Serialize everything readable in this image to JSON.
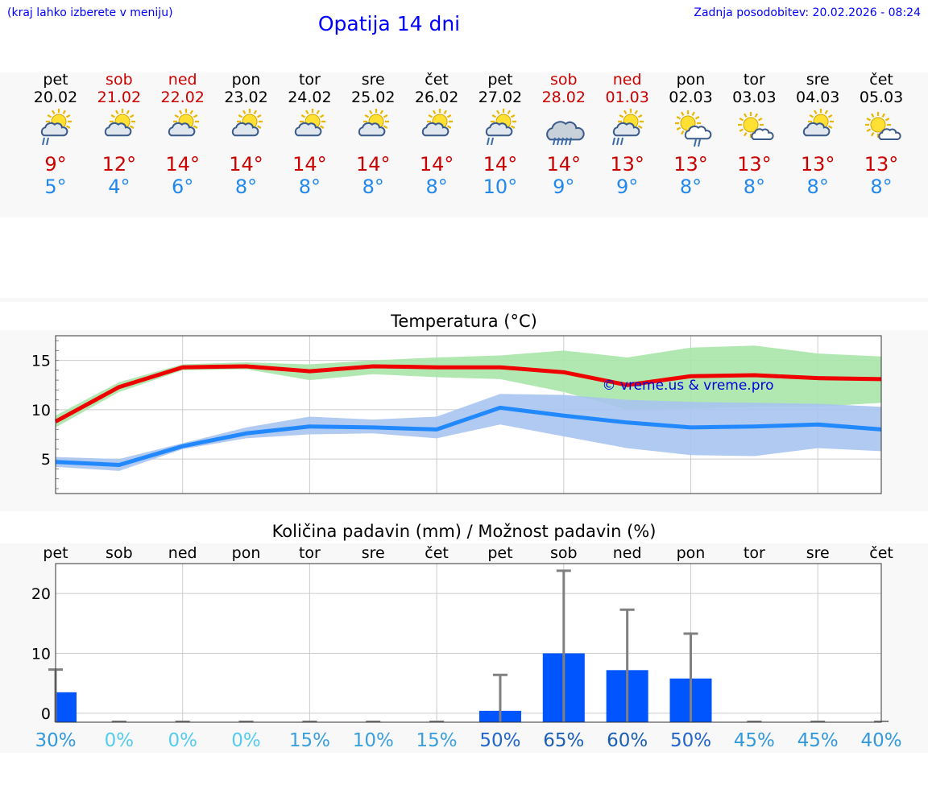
{
  "header": {
    "location_hint": "(kraj lahko izberete v meniju)",
    "title": "Opatija 14 dni",
    "updated": "Zadnja posodobitev: 20.02.2026 - 08:24"
  },
  "days": [
    {
      "name": "pet",
      "date": "20.02",
      "weekend": false,
      "icon": "sun-cloud-rain-icon",
      "max": "9°",
      "min": "5°"
    },
    {
      "name": "sob",
      "date": "21.02",
      "weekend": true,
      "icon": "sun-cloud-icon",
      "max": "12°",
      "min": "4°"
    },
    {
      "name": "ned",
      "date": "22.02",
      "weekend": true,
      "icon": "sun-cloud-icon",
      "max": "14°",
      "min": "6°"
    },
    {
      "name": "pon",
      "date": "23.02",
      "weekend": false,
      "icon": "sun-cloud-icon",
      "max": "14°",
      "min": "8°"
    },
    {
      "name": "tor",
      "date": "24.02",
      "weekend": false,
      "icon": "sun-cloud-icon",
      "max": "14°",
      "min": "8°"
    },
    {
      "name": "sre",
      "date": "25.02",
      "weekend": false,
      "icon": "sun-cloud-icon",
      "max": "14°",
      "min": "8°"
    },
    {
      "name": "čet",
      "date": "26.02",
      "weekend": false,
      "icon": "sun-cloud-icon",
      "max": "14°",
      "min": "8°"
    },
    {
      "name": "pet",
      "date": "27.02",
      "weekend": false,
      "icon": "sun-cloud-rain-icon",
      "max": "14°",
      "min": "10°"
    },
    {
      "name": "sob",
      "date": "28.02",
      "weekend": true,
      "icon": "cloud-rain-icon",
      "max": "14°",
      "min": "9°"
    },
    {
      "name": "ned",
      "date": "01.03",
      "weekend": true,
      "icon": "sun-cloud-heavy-rain-icon",
      "max": "13°",
      "min": "9°"
    },
    {
      "name": "pon",
      "date": "02.03",
      "weekend": false,
      "icon": "sun-cloud-light-rain-icon",
      "max": "13°",
      "min": "8°"
    },
    {
      "name": "tor",
      "date": "03.03",
      "weekend": false,
      "icon": "sun-small-cloud-icon",
      "max": "13°",
      "min": "8°"
    },
    {
      "name": "sre",
      "date": "04.03",
      "weekend": false,
      "icon": "sun-cloud-icon",
      "max": "13°",
      "min": "8°"
    },
    {
      "name": "čet",
      "date": "05.03",
      "weekend": false,
      "icon": "sun-small-cloud-icon",
      "max": "13°",
      "min": "8°"
    }
  ],
  "colors": {
    "max": "#ee0000",
    "min": "#2288ff",
    "max_band": "#a8e6a8",
    "min_band": "#a8c4f0",
    "bar": "#0055ff",
    "whisker": "#808080",
    "weekend": "#cc0000"
  },
  "chart_data": [
    {
      "type": "line",
      "title": "Temperatura (°C)",
      "watermark": "© vreme.us & vreme.pro",
      "categories": [
        "pet",
        "sob",
        "ned",
        "pon",
        "tor",
        "sre",
        "čet",
        "pet",
        "sob",
        "ned",
        "pon",
        "tor",
        "sre",
        "čet"
      ],
      "ylim": [
        1.5,
        17.5
      ],
      "yticks": [
        5,
        10,
        15
      ],
      "series": [
        {
          "name": "max",
          "values": [
            8.8,
            12.3,
            14.3,
            14.4,
            13.9,
            14.4,
            14.3,
            14.3,
            13.8,
            12.5,
            13.4,
            13.5,
            13.2,
            13.1
          ],
          "band_low": [
            8.2,
            11.8,
            14.0,
            14.1,
            13.0,
            13.6,
            13.3,
            13.1,
            11.8,
            10.0,
            10.1,
            10.3,
            10.3,
            10.7
          ],
          "band_high": [
            9.4,
            12.8,
            14.6,
            14.8,
            14.6,
            15.0,
            15.3,
            15.5,
            16.0,
            15.3,
            16.3,
            16.5,
            15.7,
            15.4
          ]
        },
        {
          "name": "min",
          "values": [
            4.7,
            4.4,
            6.3,
            7.6,
            8.3,
            8.2,
            8.0,
            10.2,
            9.4,
            8.7,
            8.2,
            8.3,
            8.5,
            8.0
          ],
          "band_low": [
            4.2,
            3.8,
            6.0,
            7.1,
            7.5,
            7.6,
            7.1,
            8.5,
            7.3,
            6.1,
            5.4,
            5.3,
            6.1,
            5.8
          ],
          "band_high": [
            5.2,
            5.0,
            6.6,
            8.2,
            9.3,
            9.0,
            9.3,
            11.6,
            11.5,
            11.0,
            10.8,
            10.7,
            10.6,
            10.3
          ]
        }
      ]
    },
    {
      "type": "bar",
      "title": "Količina padavin (mm) / Možnost padavin (%)",
      "categories": [
        "pet",
        "sob",
        "ned",
        "pon",
        "tor",
        "sre",
        "čet",
        "pet",
        "sob",
        "ned",
        "pon",
        "tor",
        "sre",
        "čet"
      ],
      "ylim": [
        -1.5,
        25
      ],
      "yticks": [
        0,
        10,
        20
      ],
      "values": [
        3.5,
        0,
        0,
        0,
        0,
        0,
        0,
        0.4,
        10.0,
        7.2,
        5.8,
        0,
        0,
        0
      ],
      "max_values": [
        7.3,
        0,
        0,
        0,
        0,
        0,
        0,
        6.4,
        23.8,
        17.3,
        13.3,
        0,
        0,
        0
      ],
      "probability": [
        "30%",
        "0%",
        "0%",
        "0%",
        "15%",
        "10%",
        "15%",
        "50%",
        "65%",
        "60%",
        "50%",
        "45%",
        "45%",
        "40%"
      ]
    }
  ]
}
